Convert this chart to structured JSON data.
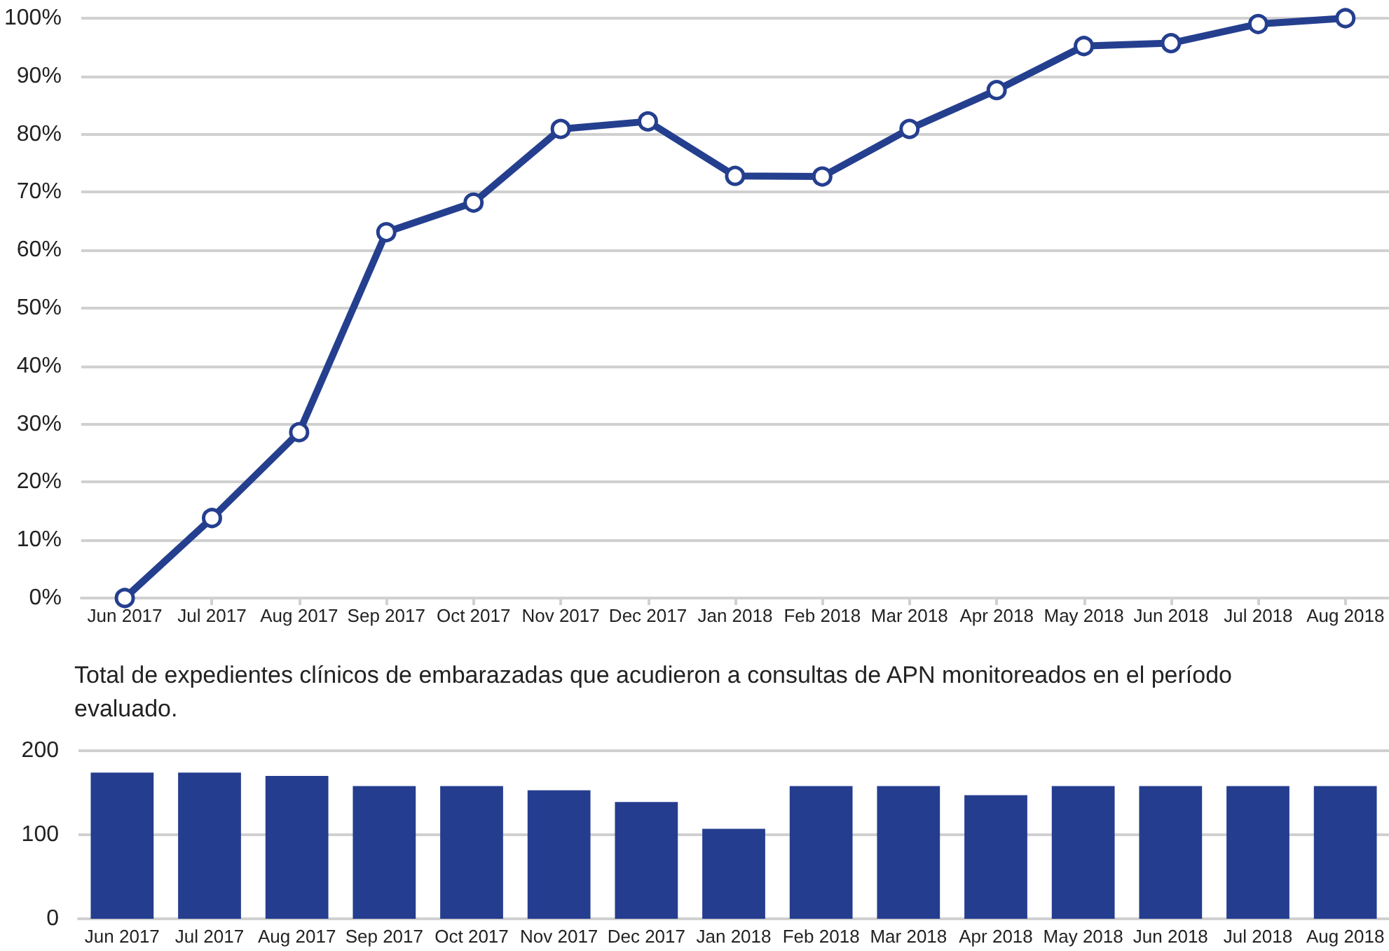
{
  "chart_data": [
    {
      "type": "line",
      "categories": [
        "Jun 2017",
        "Jul 2017",
        "Aug 2017",
        "Sep 2017",
        "Oct 2017",
        "Nov 2017",
        "Dec 2017",
        "Jan 2018",
        "Feb 2018",
        "Mar 2018",
        "Apr 2018",
        "May 2018",
        "Jun 2018",
        "Jul 2018",
        "Aug 2018"
      ],
      "series": [
        {
          "color": "#253f8f",
          "values": [
            0,
            13.8,
            28.6,
            63.1,
            68.2,
            80.9,
            82.2,
            72.8,
            72.7,
            80.9,
            87.6,
            95.2,
            95.7,
            99,
            100
          ]
        }
      ],
      "ylim": [
        0,
        100
      ],
      "yticks": [
        {
          "value": 0,
          "label": "0%"
        },
        {
          "value": 10,
          "label": "10%"
        },
        {
          "value": 20,
          "label": "20%"
        },
        {
          "value": 30,
          "label": "30%"
        },
        {
          "value": 40,
          "label": "40%"
        },
        {
          "value": 50,
          "label": "50%"
        },
        {
          "value": 60,
          "label": "60%"
        },
        {
          "value": 70,
          "label": "70%"
        },
        {
          "value": 80,
          "label": "80%"
        },
        {
          "value": 90,
          "label": "90%"
        },
        {
          "value": 100,
          "label": "100%"
        }
      ],
      "grid": "y",
      "marker": "circle",
      "line_style": "solid"
    },
    {
      "type": "bar",
      "title": "Total de expedientes clínicos de embarazadas que acudieron a consultas de APN monitoreados en el período evaluado.",
      "categories": [
        "Jun 2017",
        "Jul 2017",
        "Aug 2017",
        "Sep 2017",
        "Oct 2017",
        "Nov 2017",
        "Dec 2017",
        "Jan 2018",
        "Feb 2018",
        "Mar 2018",
        "Apr 2018",
        "May 2018",
        "Jun 2018",
        "Jul 2018",
        "Aug 2018"
      ],
      "series": [
        {
          "color": "#253d8f",
          "values": [
            174,
            174,
            170,
            158,
            158,
            153,
            139,
            107,
            158,
            158,
            147,
            158,
            158,
            158,
            158
          ]
        }
      ],
      "ylim": [
        0,
        200
      ],
      "yticks": [
        0,
        100,
        200
      ],
      "grid": "y"
    }
  ]
}
